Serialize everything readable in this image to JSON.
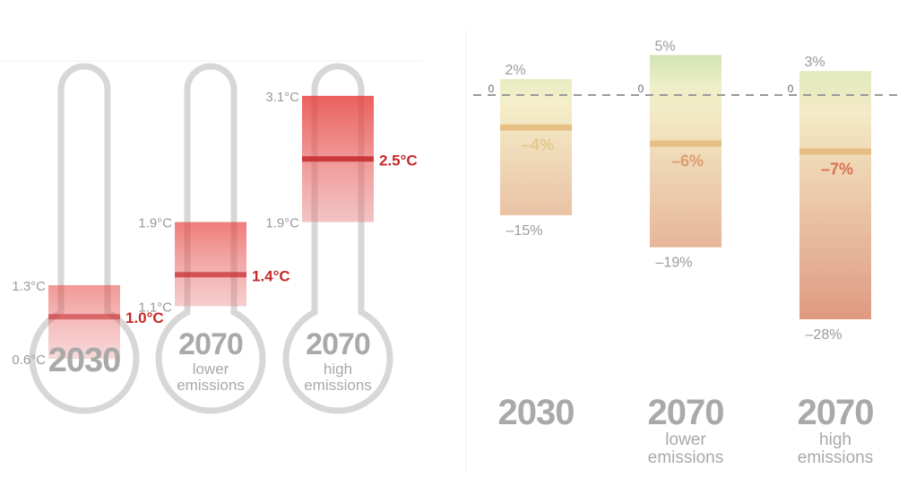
{
  "chart_data": [
    {
      "type": "bar",
      "unit": "°C",
      "categories": [
        {
          "year": "2030",
          "scenario": ""
        },
        {
          "year": "2070",
          "scenario": "lower emissions"
        },
        {
          "year": "2070",
          "scenario": "high emissions"
        }
      ],
      "ranges": [
        {
          "low": 0.6,
          "mid": 1.0,
          "high": 1.3,
          "low_label": "0.6°C",
          "mid_label": "1.0°C",
          "high_label": "1.3°C"
        },
        {
          "low": 1.1,
          "mid": 1.4,
          "high": 1.9,
          "low_label": "1.1°C",
          "mid_label": "1.4°C",
          "high_label": "1.9°C"
        },
        {
          "low": 1.9,
          "mid": 2.5,
          "high": 3.1,
          "low_label": "1.9°C",
          "mid_label": "2.5°C",
          "high_label": "3.1°C"
        }
      ],
      "colors": {
        "range": "#dd4b4b",
        "mid": "#c5282b",
        "thermometer": "#d7d7d7",
        "label": "#9a9a9a"
      }
    },
    {
      "type": "bar",
      "unit": "%",
      "zero_label": "0",
      "categories": [
        {
          "year": "2030",
          "scenario": ""
        },
        {
          "year": "2070",
          "scenario": "lower emissions"
        },
        {
          "year": "2070",
          "scenario": "high emissions"
        }
      ],
      "ranges": [
        {
          "low": -15,
          "mid": -4,
          "high": 2,
          "low_label": "–15%",
          "mid_label": "–4%",
          "high_label": "2%"
        },
        {
          "low": -19,
          "mid": -6,
          "high": 5,
          "low_label": "–19%",
          "mid_label": "–6%",
          "high_label": "5%"
        },
        {
          "low": -28,
          "mid": -7,
          "high": 3,
          "low_label": "–28%",
          "mid_label": "–7%",
          "high_label": "3%"
        }
      ],
      "colors": {
        "positive": "#c9e0a6",
        "zero": "#f4efc4",
        "negative": "#d9886a",
        "mid_line": "#e3b676",
        "label": "#9a9a9a"
      }
    }
  ]
}
